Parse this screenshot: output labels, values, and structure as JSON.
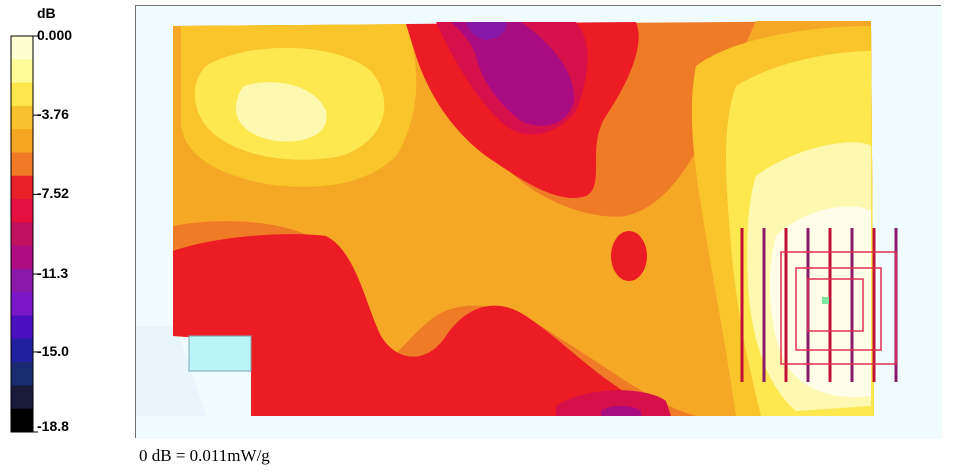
{
  "chart_data": {
    "type": "heatmap",
    "colorbar": {
      "unit": "dB",
      "ticks": [
        "0.000",
        "-3.76",
        "-7.52",
        "-11.3",
        "-15.0",
        "-18.8"
      ],
      "tick_values": [
        0,
        -3.76,
        -7.52,
        -11.3,
        -15.0,
        -18.8
      ],
      "range": [
        -18.8,
        0
      ],
      "colors": [
        "#ffffd2",
        "#fffb96",
        "#fde64a",
        "#f8c12e",
        "#f4a623",
        "#f07a26",
        "#e8202a",
        "#e61040",
        "#c01060",
        "#b00c82",
        "#8a18a8",
        "#7a18c8",
        "#4a10c0",
        "#2020a0",
        "#1a2a70",
        "#1a1a3a",
        "#000000"
      ]
    },
    "footnote": "0 dB = 0.011mW/g",
    "level_colors": {
      "0": "#fffde8",
      "-1": "#fff8b0",
      "-2": "#fde850",
      "-3": "#f9c52a",
      "-4": "#f5a825",
      "-5": "#f07b26",
      "-6": "#ec1c24",
      "-7": "#d6104a",
      "-8": "#a80c80",
      "-9": "#8818a8",
      "-10": "#7a18c8"
    },
    "background_color": "#effbfd",
    "grid_color": "#c0103a"
  }
}
